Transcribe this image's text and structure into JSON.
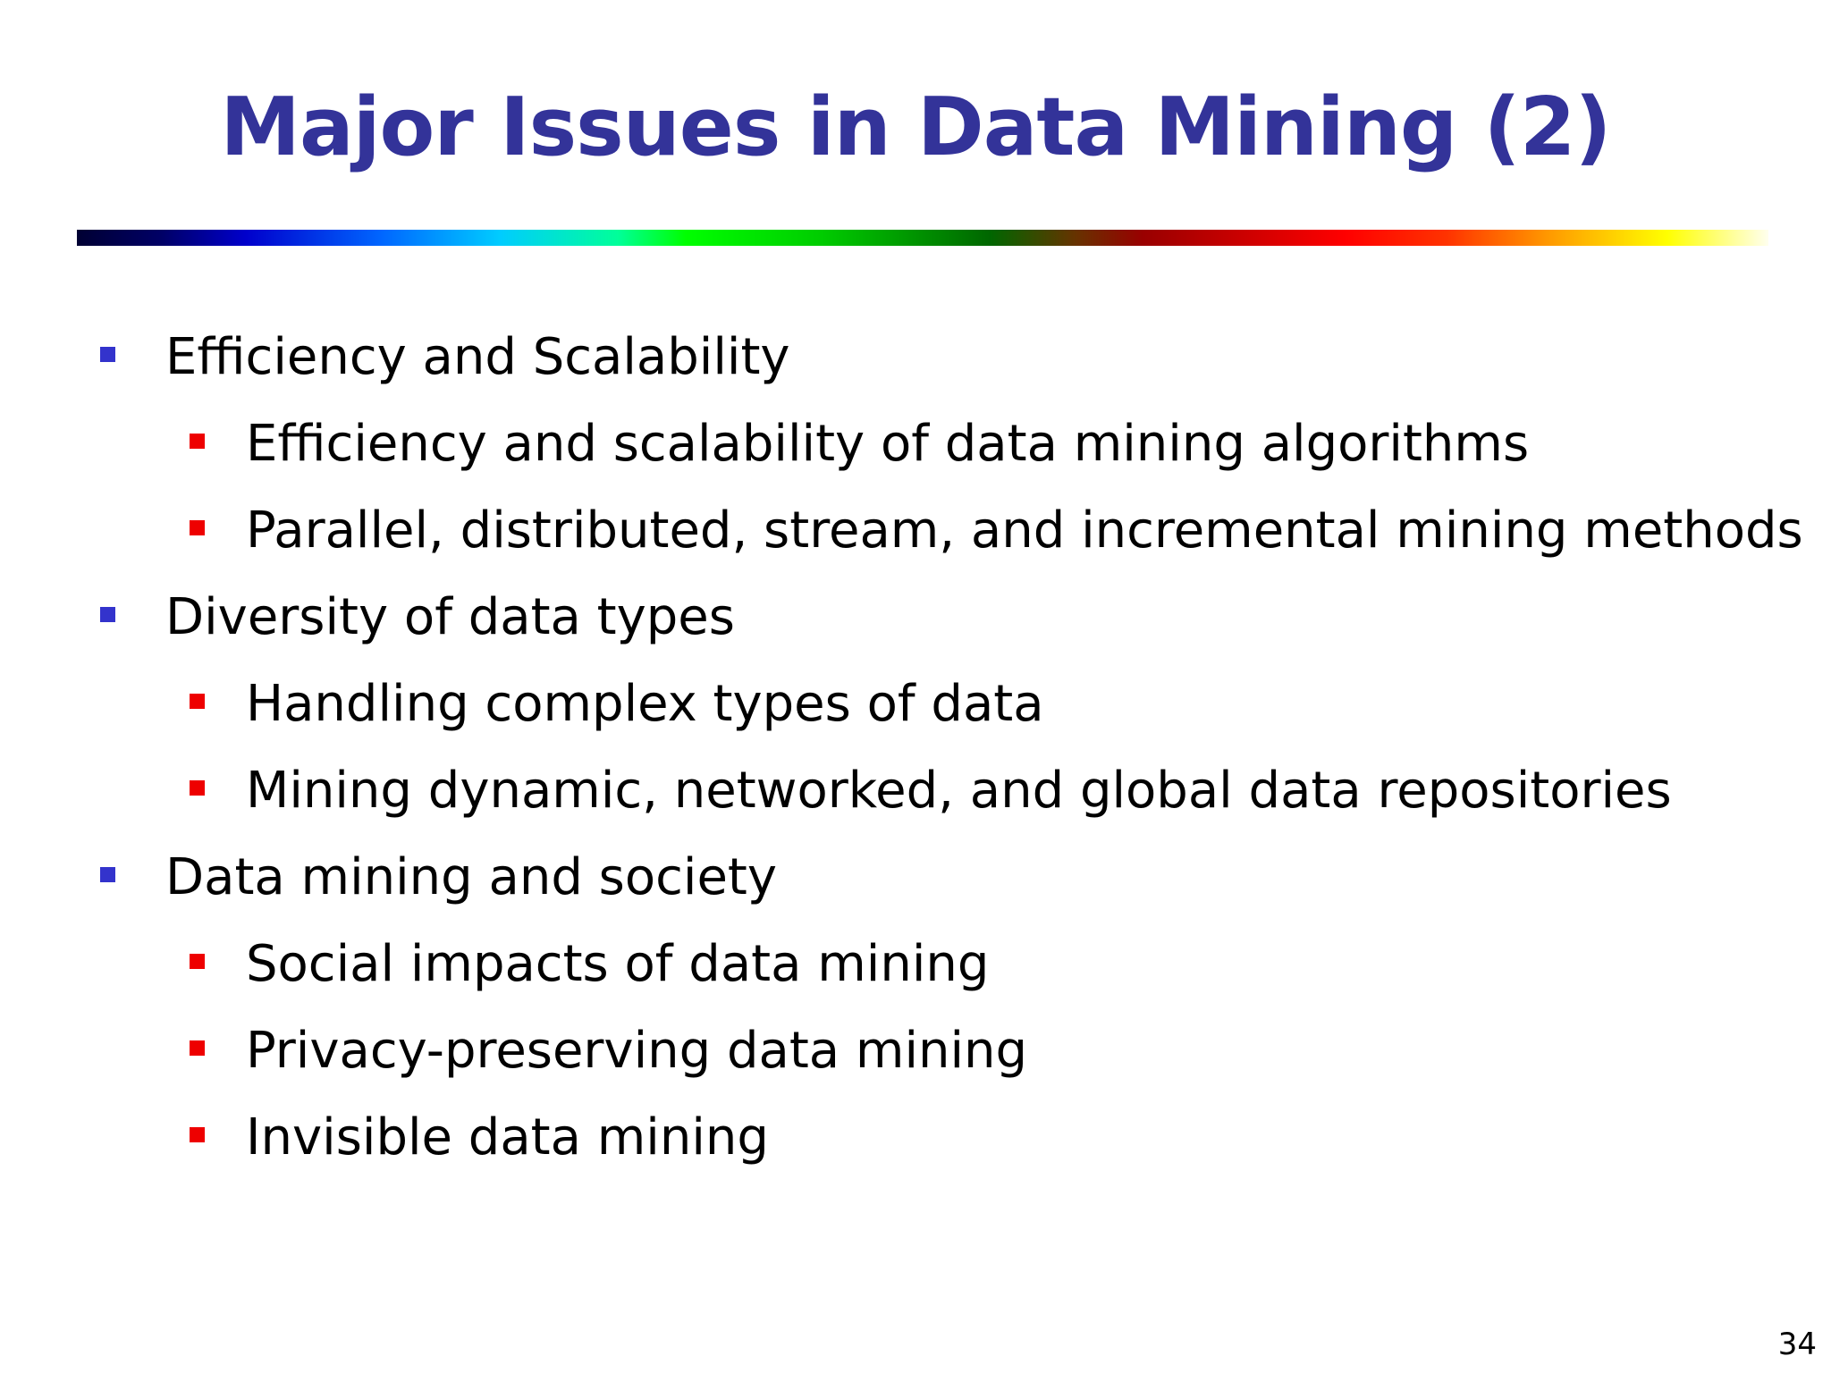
{
  "slide": {
    "title": "Major Issues in Data Mining (2)",
    "page_number": "34",
    "colors": {
      "title": "#333399",
      "level1_bullet": "#3333cc",
      "level2_bullet": "#ee0000",
      "text": "#000000"
    },
    "bullets": [
      {
        "text": "Efficiency and Scalability",
        "sub": [
          "Efficiency and scalability of data mining algorithms",
          "Parallel, distributed, stream, and incremental mining methods"
        ]
      },
      {
        "text": "Diversity of data types",
        "sub": [
          "Handling complex types of data",
          "Mining dynamic, networked, and global data repositories"
        ]
      },
      {
        "text": "Data mining and society",
        "sub": [
          "Social impacts of data mining",
          "Privacy-preserving data mining",
          "Invisible data mining"
        ]
      }
    ]
  }
}
